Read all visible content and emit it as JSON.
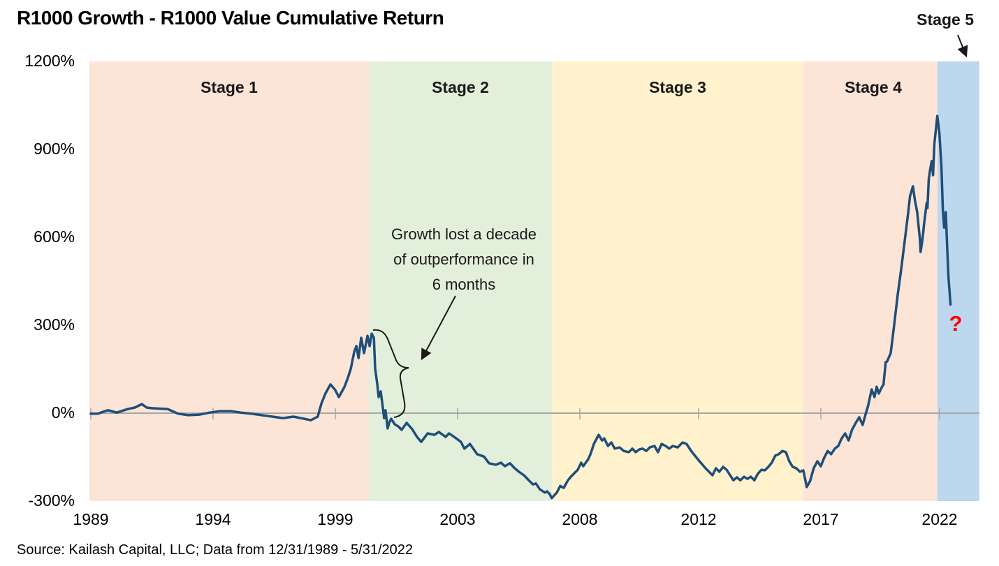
{
  "title": "R1000 Growth - R1000 Value Cumulative Return",
  "source": "Source: Kailash Capital, LLC; Data from 12/31/1989 - 5/31/2022",
  "question_mark": "?",
  "annotation": {
    "lines": [
      "Growth lost a decade",
      "of outperformance in",
      "6 months"
    ]
  },
  "y_axis": {
    "labels": [
      "1200%",
      "900%",
      "600%",
      "300%",
      "0%",
      "-300%"
    ]
  },
  "x_axis": {
    "labels": [
      "1989",
      "1994",
      "1999",
      "2003",
      "2008",
      "2012",
      "2017",
      "2022"
    ]
  },
  "colors": {
    "line": "#1f4e79",
    "axis": "#a6a6a6",
    "question": "#ff0000",
    "stage1": "#fce4d6",
    "stage2": "#e2efda",
    "stage3": "#fff2cc",
    "stage4": "#fce4d6",
    "stage5": "#bdd7ee"
  },
  "chart_data": {
    "type": "line",
    "title": "R1000 Growth - R1000 Value Cumulative Return",
    "xlabel": "",
    "ylabel": "",
    "ylim": [
      -300,
      1200
    ],
    "y_ticks_percent": [
      1200,
      900,
      600,
      300,
      0,
      -300
    ],
    "x_tick_labels": [
      "1989",
      "1994",
      "1999",
      "2003",
      "2008",
      "2012",
      "2017",
      "2022"
    ],
    "grid": false,
    "legend": false,
    "stages": [
      {
        "label": "Stage 1",
        "start": 1989.87,
        "end": 2000.42,
        "color": "#fce4d6"
      },
      {
        "label": "Stage 2",
        "start": 2000.42,
        "end": 2007.33,
        "color": "#e2efda"
      },
      {
        "label": "Stage 3",
        "start": 2007.33,
        "end": 2016.83,
        "color": "#fff2cc"
      },
      {
        "label": "Stage 4",
        "start": 2016.83,
        "end": 2021.9,
        "color": "#fce4d6"
      },
      {
        "label": "Stage 5",
        "start": 2021.9,
        "end": 2023.48,
        "color": "#bdd7ee"
      }
    ],
    "series": [
      {
        "name": "R1000 Growth - R1000 Value Cumulative Return",
        "color": "#1f4e79",
        "points": [
          [
            1989.92,
            -2
          ],
          [
            1990.18,
            -2
          ],
          [
            1990.45,
            7
          ],
          [
            1990.58,
            10
          ],
          [
            1990.9,
            2
          ],
          [
            1991.32,
            14
          ],
          [
            1991.58,
            19
          ],
          [
            1991.85,
            31
          ],
          [
            1992.03,
            19
          ],
          [
            1992.22,
            17
          ],
          [
            1992.82,
            14
          ],
          [
            1993.22,
            -2
          ],
          [
            1993.61,
            -7
          ],
          [
            1994.01,
            -5
          ],
          [
            1994.41,
            2
          ],
          [
            1994.8,
            7
          ],
          [
            1995.2,
            7
          ],
          [
            1995.59,
            2
          ],
          [
            1995.99,
            -2
          ],
          [
            1996.38,
            -7
          ],
          [
            1996.78,
            -12
          ],
          [
            1997.18,
            -17
          ],
          [
            1997.57,
            -12
          ],
          [
            1997.97,
            -19
          ],
          [
            1998.23,
            -24
          ],
          [
            1998.49,
            -12
          ],
          [
            1998.63,
            33
          ],
          [
            1998.78,
            67
          ],
          [
            1998.97,
            98
          ],
          [
            1999.15,
            79
          ],
          [
            1999.29,
            55
          ],
          [
            1999.5,
            90
          ],
          [
            1999.63,
            121
          ],
          [
            1999.74,
            152
          ],
          [
            1999.87,
            210
          ],
          [
            1999.95,
            229
          ],
          [
            2000.03,
            188
          ],
          [
            2000.13,
            257
          ],
          [
            2000.24,
            205
          ],
          [
            2000.37,
            264
          ],
          [
            2000.45,
            229
          ],
          [
            2000.53,
            271
          ],
          [
            2000.61,
            257
          ],
          [
            2000.66,
            152
          ],
          [
            2000.74,
            98
          ],
          [
            2000.79,
            55
          ],
          [
            2000.87,
            74
          ],
          [
            2000.95,
            19
          ],
          [
            2001.0,
            -17
          ],
          [
            2001.05,
            10
          ],
          [
            2001.13,
            -52
          ],
          [
            2001.19,
            -33
          ],
          [
            2001.26,
            -19
          ],
          [
            2001.4,
            -38
          ],
          [
            2001.53,
            -45
          ],
          [
            2001.66,
            -57
          ],
          [
            2001.85,
            -33
          ],
          [
            2002.06,
            -55
          ],
          [
            2002.24,
            -81
          ],
          [
            2002.4,
            -98
          ],
          [
            2002.64,
            -69
          ],
          [
            2002.9,
            -74
          ],
          [
            2003.06,
            -64
          ],
          [
            2003.32,
            -81
          ],
          [
            2003.45,
            -69
          ],
          [
            2003.72,
            -86
          ],
          [
            2003.9,
            -98
          ],
          [
            2004.03,
            -121
          ],
          [
            2004.24,
            -105
          ],
          [
            2004.51,
            -140
          ],
          [
            2004.77,
            -148
          ],
          [
            2004.96,
            -171
          ],
          [
            2005.22,
            -176
          ],
          [
            2005.41,
            -169
          ],
          [
            2005.56,
            -181
          ],
          [
            2005.75,
            -171
          ],
          [
            2005.93,
            -188
          ],
          [
            2006.09,
            -200
          ],
          [
            2006.28,
            -212
          ],
          [
            2006.46,
            -229
          ],
          [
            2006.62,
            -243
          ],
          [
            2006.73,
            -240
          ],
          [
            2006.88,
            -260
          ],
          [
            2007.07,
            -271
          ],
          [
            2007.15,
            -267
          ],
          [
            2007.25,
            -276
          ],
          [
            2007.33,
            -290
          ],
          [
            2007.52,
            -271
          ],
          [
            2007.65,
            -248
          ],
          [
            2007.78,
            -255
          ],
          [
            2007.94,
            -229
          ],
          [
            2008.05,
            -217
          ],
          [
            2008.31,
            -193
          ],
          [
            2008.44,
            -169
          ],
          [
            2008.52,
            -181
          ],
          [
            2008.71,
            -157
          ],
          [
            2008.79,
            -140
          ],
          [
            2008.92,
            -105
          ],
          [
            2009.1,
            -74
          ],
          [
            2009.23,
            -93
          ],
          [
            2009.31,
            -86
          ],
          [
            2009.45,
            -112
          ],
          [
            2009.58,
            -100
          ],
          [
            2009.71,
            -121
          ],
          [
            2009.89,
            -117
          ],
          [
            2010.05,
            -129
          ],
          [
            2010.24,
            -133
          ],
          [
            2010.37,
            -121
          ],
          [
            2010.5,
            -133
          ],
          [
            2010.63,
            -124
          ],
          [
            2010.76,
            -121
          ],
          [
            2010.9,
            -129
          ],
          [
            2011.03,
            -117
          ],
          [
            2011.21,
            -112
          ],
          [
            2011.34,
            -133
          ],
          [
            2011.48,
            -105
          ],
          [
            2011.63,
            -112
          ],
          [
            2011.77,
            -121
          ],
          [
            2011.9,
            -112
          ],
          [
            2012.08,
            -117
          ],
          [
            2012.27,
            -100
          ],
          [
            2012.42,
            -105
          ],
          [
            2012.61,
            -131
          ],
          [
            2012.87,
            -160
          ],
          [
            2013.14,
            -188
          ],
          [
            2013.4,
            -212
          ],
          [
            2013.53,
            -188
          ],
          [
            2013.66,
            -200
          ],
          [
            2013.8,
            -183
          ],
          [
            2013.93,
            -193
          ],
          [
            2014.19,
            -229
          ],
          [
            2014.32,
            -219
          ],
          [
            2014.45,
            -229
          ],
          [
            2014.59,
            -217
          ],
          [
            2014.72,
            -224
          ],
          [
            2014.85,
            -217
          ],
          [
            2014.98,
            -229
          ],
          [
            2015.11,
            -207
          ],
          [
            2015.25,
            -193
          ],
          [
            2015.38,
            -195
          ],
          [
            2015.51,
            -183
          ],
          [
            2015.64,
            -169
          ],
          [
            2015.77,
            -145
          ],
          [
            2015.9,
            -140
          ],
          [
            2016.04,
            -129
          ],
          [
            2016.17,
            -133
          ],
          [
            2016.3,
            -164
          ],
          [
            2016.43,
            -183
          ],
          [
            2016.57,
            -188
          ],
          [
            2016.7,
            -200
          ],
          [
            2016.83,
            -195
          ],
          [
            2016.96,
            -252
          ],
          [
            2017.09,
            -231
          ],
          [
            2017.22,
            -188
          ],
          [
            2017.36,
            -164
          ],
          [
            2017.49,
            -181
          ],
          [
            2017.62,
            -152
          ],
          [
            2017.75,
            -129
          ],
          [
            2017.88,
            -140
          ],
          [
            2018.02,
            -121
          ],
          [
            2018.15,
            -112
          ],
          [
            2018.28,
            -86
          ],
          [
            2018.41,
            -69
          ],
          [
            2018.54,
            -93
          ],
          [
            2018.67,
            -57
          ],
          [
            2018.81,
            -33
          ],
          [
            2018.94,
            -14
          ],
          [
            2019.07,
            -40
          ],
          [
            2019.2,
            2
          ],
          [
            2019.28,
            26
          ],
          [
            2019.41,
            81
          ],
          [
            2019.52,
            55
          ],
          [
            2019.6,
            90
          ],
          [
            2019.68,
            67
          ],
          [
            2019.78,
            86
          ],
          [
            2019.86,
            98
          ],
          [
            2019.94,
            174
          ],
          [
            2019.99,
            176
          ],
          [
            2020.13,
            205
          ],
          [
            2020.26,
            300
          ],
          [
            2020.39,
            400
          ],
          [
            2020.52,
            486
          ],
          [
            2020.65,
            581
          ],
          [
            2020.78,
            676
          ],
          [
            2020.86,
            740
          ],
          [
            2020.97,
            774
          ],
          [
            2021.05,
            724
          ],
          [
            2021.13,
            686
          ],
          [
            2021.18,
            640
          ],
          [
            2021.23,
            598
          ],
          [
            2021.26,
            550
          ],
          [
            2021.31,
            581
          ],
          [
            2021.36,
            617
          ],
          [
            2021.39,
            645
          ],
          [
            2021.44,
            681
          ],
          [
            2021.49,
            717
          ],
          [
            2021.52,
            700
          ],
          [
            2021.57,
            800
          ],
          [
            2021.63,
            836
          ],
          [
            2021.68,
            860
          ],
          [
            2021.73,
            812
          ],
          [
            2021.78,
            919
          ],
          [
            2021.89,
            1014
          ],
          [
            2021.97,
            955
          ],
          [
            2022.05,
            836
          ],
          [
            2022.1,
            693
          ],
          [
            2022.15,
            633
          ],
          [
            2022.21,
            686
          ],
          [
            2022.26,
            574
          ],
          [
            2022.31,
            467
          ],
          [
            2022.39,
            371
          ]
        ]
      }
    ],
    "annotations": [
      {
        "text": "Growth lost a decade of outperformance in 6 months",
        "points_to": "mid-2000 crash from +271% to ~0%"
      },
      {
        "text": "Stage 5",
        "points_to": "blue band starting Dec 2021"
      },
      {
        "text": "?",
        "meaning": "uncertain continuation after drop to +371%"
      }
    ]
  }
}
